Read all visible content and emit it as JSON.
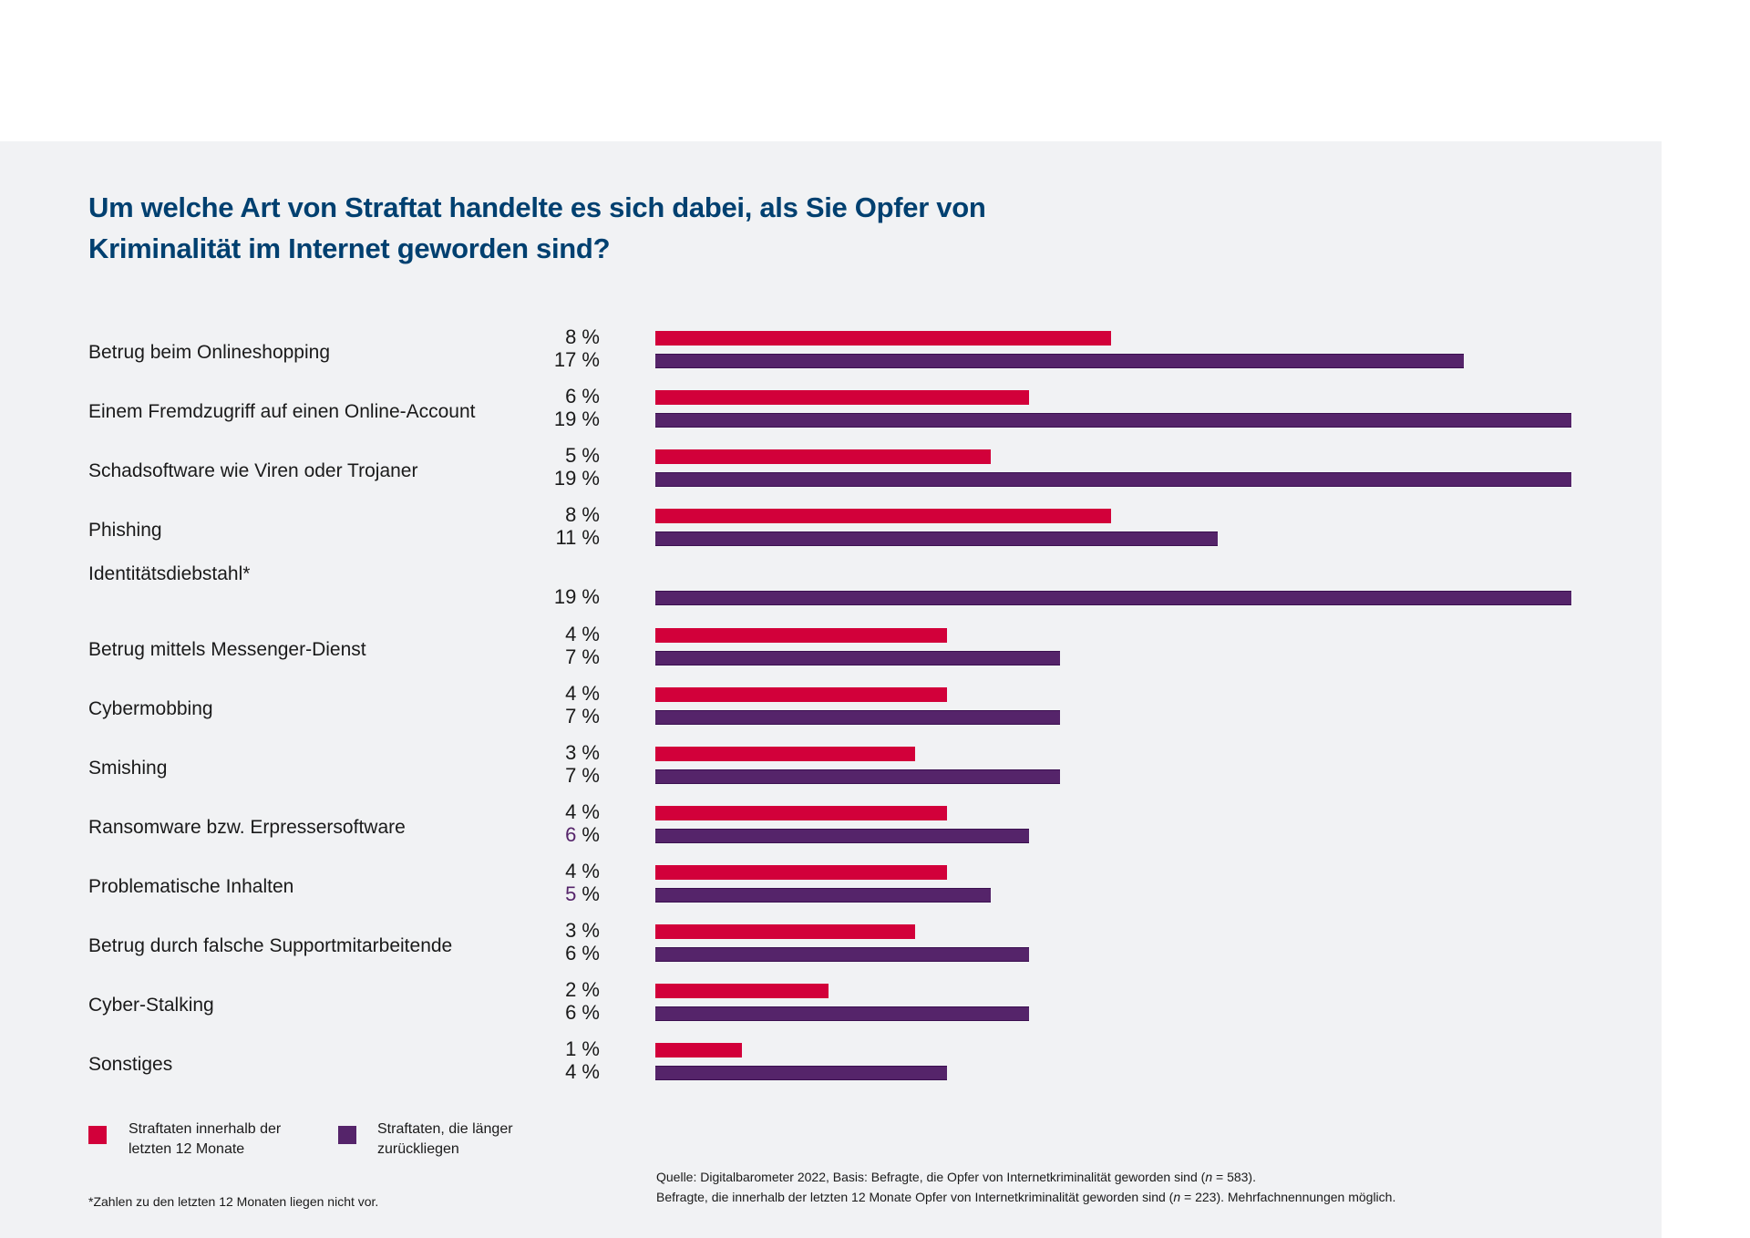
{
  "colors": {
    "series_recent": "#d2003a",
    "series_older": "#55246a",
    "title": "#004070",
    "panel_background": "#f1f2f4"
  },
  "chart_data": {
    "type": "bar",
    "orientation": "horizontal",
    "title": "Um welche Art von Straftat handelte es sich dabei, als Sie Opfer von Kriminalität im Internet geworden sind?",
    "title_lines": [
      "Um welche Art von Straftat handelte es sich dabei, als Sie Opfer von",
      "Kriminalität im Internet geworden sind?"
    ],
    "xlabel": "",
    "ylabel": "",
    "unit": "%",
    "grid": false,
    "legend_position": "bottom-left",
    "categories": [
      "Betrug beim Onlineshopping",
      "Einem Fremdzugriff auf einen Online-Account",
      "Schadsoftware wie Viren oder Trojaner",
      "Phishing",
      "Identitätsdiebstahl*",
      "Betrug mittels Messenger-Dienst",
      "Cybermobbing",
      "Smishing",
      "Ransomware bzw. Erpressersoftware",
      "Problematische Inhalten",
      "Betrug durch falsche Supportmitarbeitende",
      "Cyber-Stalking",
      "Sonstiges"
    ],
    "series": [
      {
        "name": "Straftaten innerhalb der letzten 12 Monate",
        "color": "#d2003a",
        "values": [
          8,
          6,
          5,
          8,
          null,
          4,
          4,
          3,
          4,
          4,
          3,
          2,
          1
        ]
      },
      {
        "name": "Straftaten, die länger zurückliegen",
        "color": "#55246a",
        "values": [
          17,
          19,
          19,
          11,
          19,
          7,
          7,
          7,
          6,
          5,
          6,
          6,
          4
        ]
      }
    ],
    "value_labels": {
      "recent": [
        "8",
        "6",
        "5",
        "8",
        "",
        "4",
        "4",
        "3",
        "4",
        "4",
        "3",
        "2",
        "1"
      ],
      "older": [
        "17",
        "19",
        "19",
        "11",
        "19",
        "7",
        "7",
        "7",
        "6",
        "5",
        "6",
        "6",
        "4"
      ],
      "suffix": " %",
      "older_number_highlighted": [
        false,
        false,
        false,
        false,
        false,
        false,
        false,
        false,
        true,
        true,
        false,
        false,
        false
      ]
    },
    "legend": [
      {
        "line1": "Straftaten innerhalb der",
        "line2": "letzten 12 Monate",
        "color": "#d2003a"
      },
      {
        "line1": "Straftaten, die länger",
        "line2": "zurückliegen",
        "color": "#55246a"
      }
    ],
    "footnote": "*Zahlen zu den letzten 12 Monaten liegen nicht vor.",
    "source": {
      "line1_pre": "Quelle: Digitalbarometer 2022, Basis: Befragte, die Opfer von Internetkriminalität geworden sind (",
      "line1_n": "n",
      "line1_post": " = 583).",
      "line2_pre": "Befragte, die innerhalb der letzten 12 Monate Opfer von Internetkriminalität geworden sind (",
      "line2_n": "n",
      "line2_post": " = 223). Mehrfachnennungen möglich."
    }
  }
}
